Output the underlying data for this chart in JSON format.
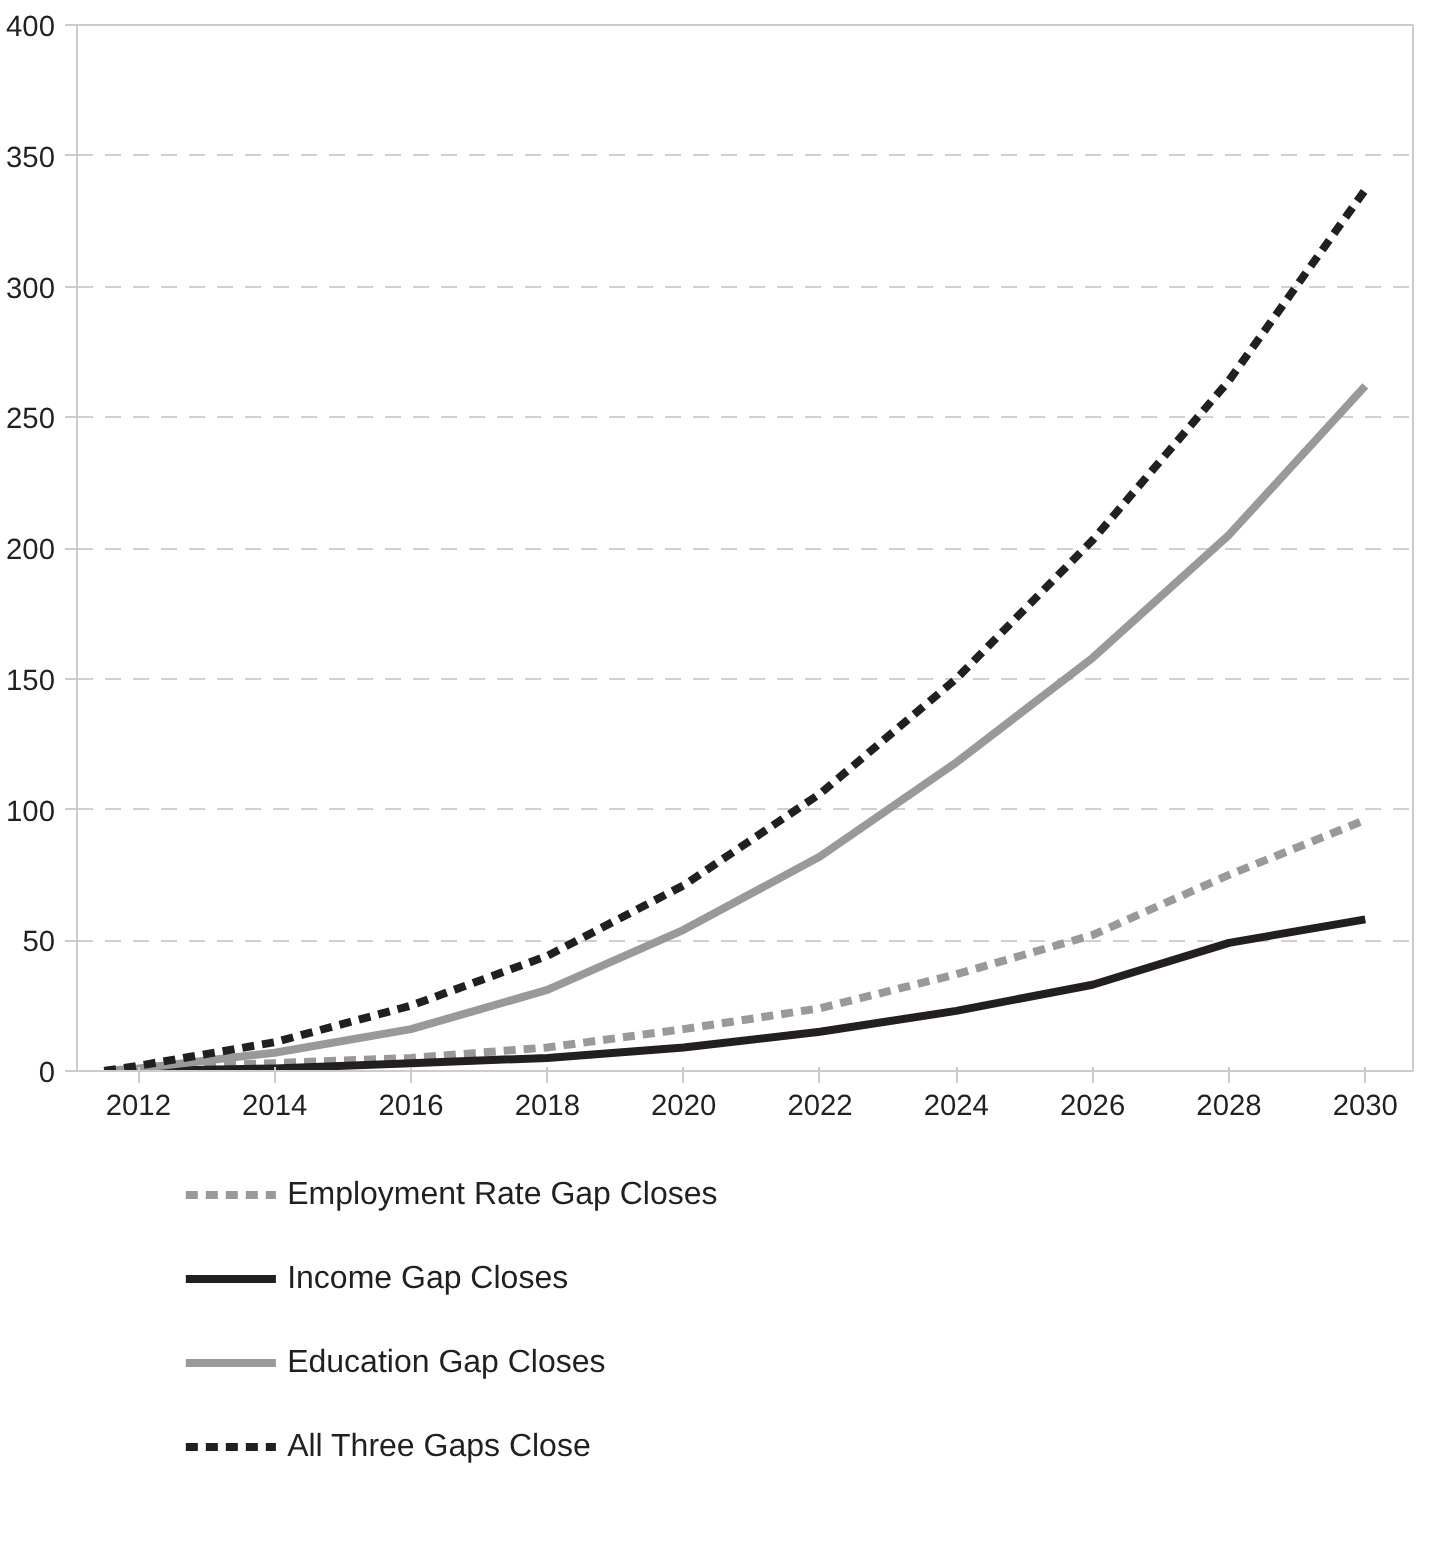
{
  "chart_data": {
    "type": "line",
    "x": [
      2011.5,
      2012,
      2014,
      2016,
      2018,
      2020,
      2022,
      2024,
      2026,
      2028,
      2030
    ],
    "series": [
      {
        "name": "Employment Rate Gap Closes",
        "color": "#999999",
        "line_style": "dashed",
        "values": [
          0,
          1,
          3,
          5,
          9,
          16,
          24,
          37,
          52,
          75,
          96
        ]
      },
      {
        "name": "Income Gap Closes",
        "color": "#231f20",
        "line_style": "solid",
        "values": [
          0,
          0,
          1,
          3,
          5,
          9,
          15,
          23,
          33,
          49,
          58
        ]
      },
      {
        "name": "Education Gap Closes",
        "color": "#999999",
        "line_style": "solid",
        "values": [
          0,
          1,
          7,
          16,
          31,
          54,
          82,
          118,
          158,
          205,
          262
        ]
      },
      {
        "name": "All Three Gaps Close",
        "color": "#231f20",
        "line_style": "dashed",
        "values": [
          0,
          2,
          11,
          25,
          44,
          71,
          106,
          150,
          203,
          264,
          337
        ]
      }
    ],
    "xlim": [
      2011.1,
      2030.7
    ],
    "xticks": [
      2012,
      2014,
      2016,
      2018,
      2020,
      2022,
      2024,
      2026,
      2028,
      2030
    ],
    "ylim": [
      0,
      400
    ],
    "yticks": [
      0,
      50,
      100,
      150,
      200,
      250,
      300,
      350,
      400
    ],
    "grid": "y",
    "legend": "bottom",
    "marker": "none"
  }
}
